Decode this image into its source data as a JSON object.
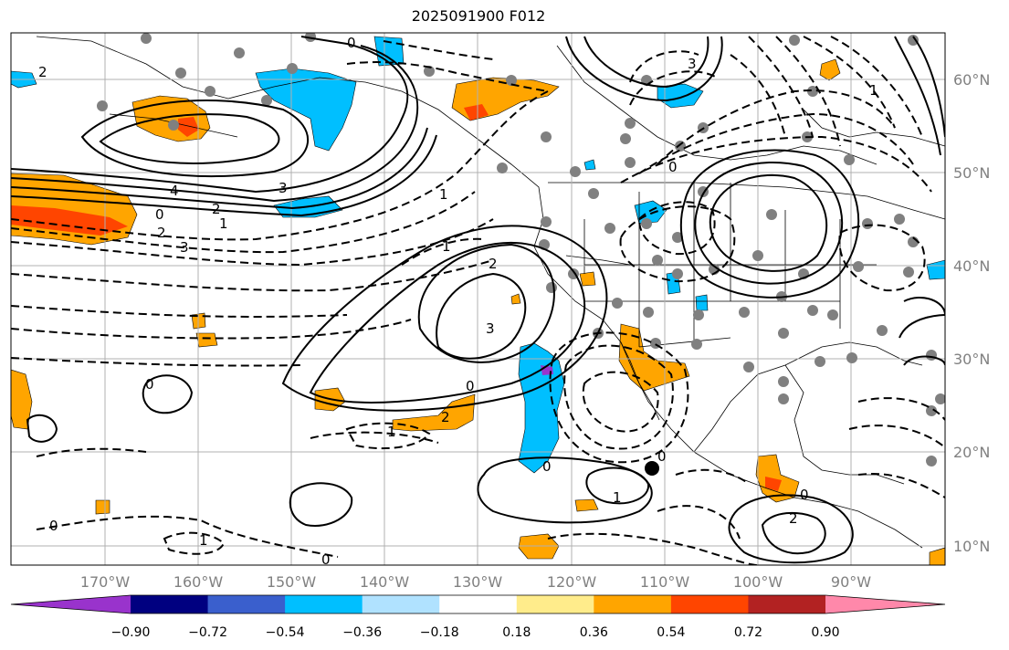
{
  "title": "2025091900 F012",
  "lon_labels": [
    "170°W",
    "160°W",
    "150°W",
    "140°W",
    "130°W",
    "120°W",
    "110°W",
    "100°W",
    "90°W"
  ],
  "lat_labels": [
    "60°N",
    "50°N",
    "40°N",
    "30°N",
    "20°N",
    "10°N"
  ],
  "colorbar": {
    "colors": [
      "#9933cc",
      "#000080",
      "#3a5fcd",
      "#00bfff",
      "#b0e2ff",
      "#ffffff",
      "#ffec8b",
      "#ffa500",
      "#ff4500",
      "#b22222",
      "#ff88aa"
    ],
    "tick_labels": [
      "−0.90",
      "−0.72",
      "−0.54",
      "−0.36",
      "−0.18",
      "0.18",
      "0.36",
      "0.54",
      "0.72",
      "0.90"
    ]
  },
  "contour_labels": [
    "0",
    "2",
    "4",
    "3",
    "2",
    "2",
    "1",
    "2",
    "3",
    "0",
    "3",
    "1",
    "1",
    "2",
    "3",
    "0",
    "1",
    "0",
    "1",
    "0",
    "0",
    "1",
    "2",
    "0",
    "0",
    "0",
    "0",
    "1"
  ]
}
